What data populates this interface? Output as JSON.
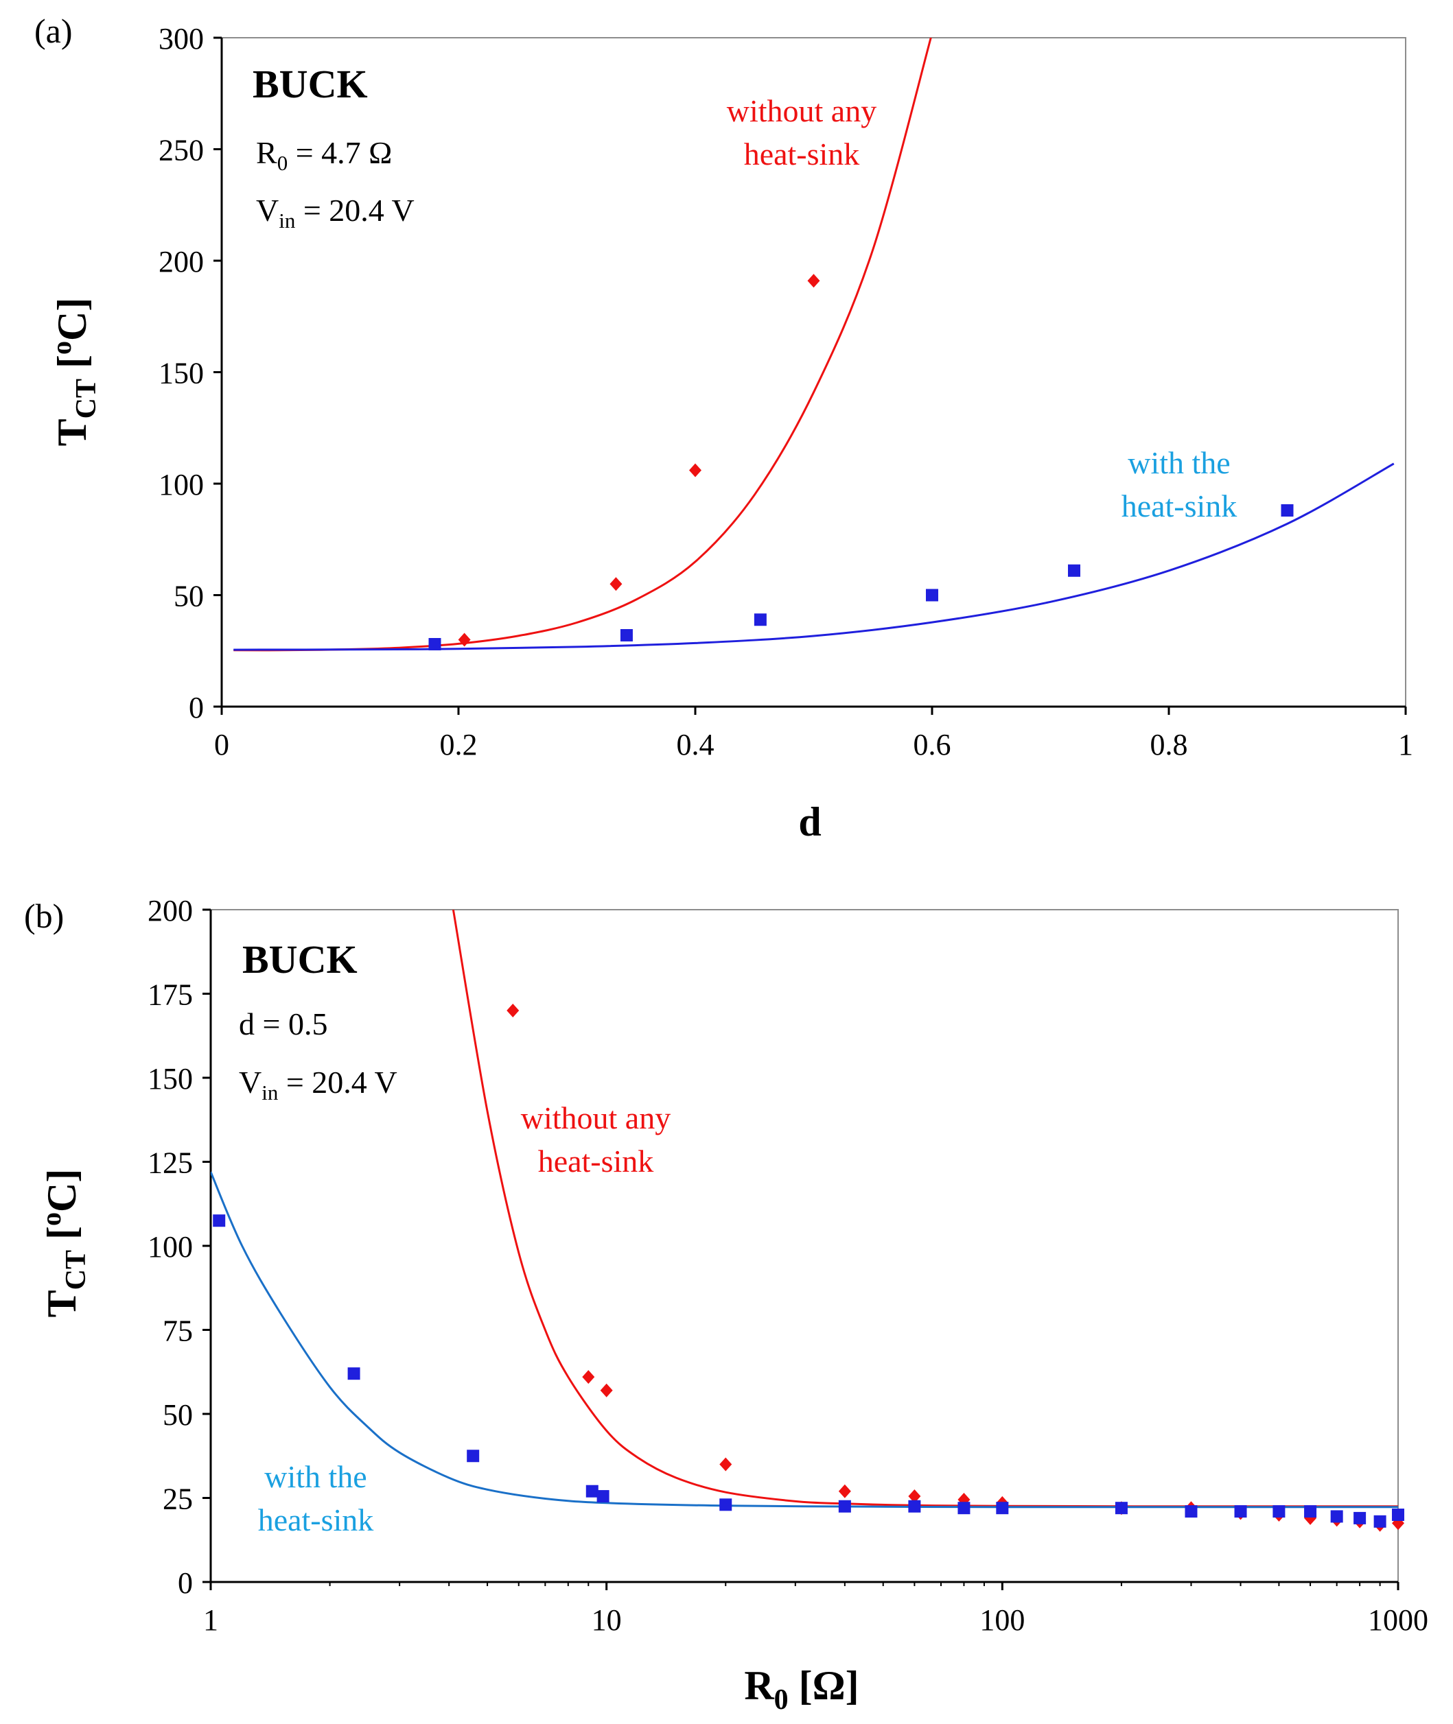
{
  "chart_data": [
    {
      "panel_label": "(a)",
      "type": "scatter",
      "xlabel": "d",
      "ylabel_main": "T",
      "ylabel_sub": "CT",
      "ylabel_unit_pre": " [",
      "ylabel_unit_sup": "o",
      "ylabel_unit_post": "C]",
      "xscale": "linear",
      "xlim": [
        0,
        1
      ],
      "ylim": [
        0,
        300
      ],
      "xticks": [
        0,
        0.2,
        0.4,
        0.6,
        0.8,
        1
      ],
      "xtick_labels": [
        "0",
        "0.2",
        "0.4",
        "0.6",
        "0.8",
        "1"
      ],
      "yticks": [
        0,
        50,
        100,
        150,
        200,
        250,
        300
      ],
      "ytick_labels": [
        "0",
        "50",
        "100",
        "150",
        "200",
        "250",
        "300"
      ],
      "grid": false,
      "annotations": {
        "title": "BUCK",
        "param1": {
          "main": "R",
          "sub": "0",
          "rest": " = 4.7 Ω"
        },
        "param2": {
          "main": "V",
          "sub": "in",
          "rest": " = 20.4 V"
        }
      },
      "series": [
        {
          "name": "without any heat-sink",
          "label_lines": [
            "without any",
            "heat-sink"
          ],
          "color": "#ee1111",
          "marker": "diamond",
          "points": [
            [
              0.205,
              30
            ],
            [
              0.333,
              55
            ],
            [
              0.4,
              106
            ],
            [
              0.5,
              191
            ]
          ],
          "curve": [
            [
              0.01,
              25.3
            ],
            [
              0.05,
              25.3
            ],
            [
              0.1,
              25.6
            ],
            [
              0.15,
              26.4
            ],
            [
              0.2,
              28.2
            ],
            [
              0.25,
              31.7
            ],
            [
              0.3,
              37.7
            ],
            [
              0.35,
              48
            ],
            [
              0.4,
              65
            ],
            [
              0.45,
              95
            ],
            [
              0.5,
              141
            ],
            [
              0.55,
              205
            ],
            [
              0.6,
              302
            ]
          ]
        },
        {
          "name": "with the heat-sink",
          "label_lines": [
            "with the",
            "heat-sink"
          ],
          "color": "#1f1fdd",
          "label_color": "#1aa0e0",
          "marker": "square",
          "points": [
            [
              0.18,
              28
            ],
            [
              0.342,
              32
            ],
            [
              0.455,
              39
            ],
            [
              0.6,
              50
            ],
            [
              0.72,
              61
            ],
            [
              0.9,
              88
            ]
          ],
          "curve": [
            [
              0.01,
              25.5
            ],
            [
              0.1,
              25.6
            ],
            [
              0.2,
              25.9
            ],
            [
              0.3,
              26.8
            ],
            [
              0.4,
              28.5
            ],
            [
              0.5,
              31.7
            ],
            [
              0.6,
              37.8
            ],
            [
              0.7,
              47
            ],
            [
              0.8,
              61
            ],
            [
              0.9,
              82
            ],
            [
              0.99,
              109
            ]
          ]
        }
      ]
    },
    {
      "panel_label": "(b)",
      "type": "scatter",
      "xlabel_main": "R",
      "xlabel_sub": "0",
      "xlabel_rest": " [Ω]",
      "ylabel_main": "T",
      "ylabel_sub": "CT",
      "ylabel_unit_pre": " [",
      "ylabel_unit_sup": "o",
      "ylabel_unit_post": "C]",
      "xscale": "log",
      "xlim": [
        1,
        1000
      ],
      "ylim": [
        0,
        200
      ],
      "xticks": [
        1,
        10,
        100,
        1000
      ],
      "xtick_labels": [
        "1",
        "10",
        "100",
        "1000"
      ],
      "yticks": [
        0,
        25,
        50,
        75,
        100,
        125,
        150,
        175,
        200
      ],
      "ytick_labels": [
        "0",
        "25",
        "50",
        "75",
        "100",
        "125",
        "150",
        "175",
        "200"
      ],
      "grid": false,
      "annotations": {
        "title": "BUCK",
        "param1": {
          "main": "d = 0.5",
          "sub": "",
          "rest": ""
        },
        "param2": {
          "main": "V",
          "sub": "in",
          "rest": " = 20.4 V"
        }
      },
      "series": [
        {
          "name": "without any heat-sink",
          "label_lines": [
            "without any",
            "heat-sink"
          ],
          "color": "#ee1111",
          "marker": "diamond",
          "points": [
            [
              5.8,
              170
            ],
            [
              9,
              61
            ],
            [
              10,
              57
            ],
            [
              20,
              35
            ],
            [
              40,
              27
            ],
            [
              60,
              25.5
            ],
            [
              80,
              24.5
            ],
            [
              100,
              23.5
            ],
            [
              200,
              22
            ],
            [
              300,
              22
            ],
            [
              400,
              20.5
            ],
            [
              500,
              20
            ],
            [
              600,
              19
            ],
            [
              700,
              18.5
            ],
            [
              800,
              18
            ],
            [
              900,
              17
            ],
            [
              1000,
              17.5
            ]
          ],
          "curve": [
            [
              4.1,
              200
            ],
            [
              5,
              140
            ],
            [
              6,
              98
            ],
            [
              7,
              75
            ],
            [
              8,
              61
            ],
            [
              10,
              45
            ],
            [
              12,
              37
            ],
            [
              15,
              31
            ],
            [
              20,
              26.7
            ],
            [
              30,
              24
            ],
            [
              40,
              23.3
            ],
            [
              60,
              22.8
            ],
            [
              100,
              22.6
            ],
            [
              300,
              22.5
            ],
            [
              1000,
              22.5
            ]
          ]
        },
        {
          "name": "with the heat-sink",
          "label_lines": [
            "with the",
            "heat-sink"
          ],
          "color": "#1f1fdd",
          "curve_color": "#1a70c8",
          "label_color": "#1aa0e0",
          "marker": "square",
          "points": [
            [
              1.05,
              107.5
            ],
            [
              2.3,
              62
            ],
            [
              4.6,
              37.5
            ],
            [
              9.2,
              27
            ],
            [
              9.8,
              25.5
            ],
            [
              20,
              23
            ],
            [
              40,
              22.5
            ],
            [
              60,
              22.5
            ],
            [
              80,
              22
            ],
            [
              100,
              22
            ],
            [
              200,
              22
            ],
            [
              300,
              21
            ],
            [
              400,
              21
            ],
            [
              500,
              21
            ],
            [
              600,
              21
            ],
            [
              700,
              19.5
            ],
            [
              800,
              19
            ],
            [
              900,
              18
            ],
            [
              1000,
              20
            ]
          ],
          "curve": [
            [
              1,
              122
            ],
            [
              1.2,
              100
            ],
            [
              1.5,
              80
            ],
            [
              2,
              58
            ],
            [
              2.5,
              46
            ],
            [
              3,
              38.5
            ],
            [
              4,
              31
            ],
            [
              5,
              27.5
            ],
            [
              7,
              24.8
            ],
            [
              10,
              23.5
            ],
            [
              20,
              22.7
            ],
            [
              50,
              22.4
            ],
            [
              100,
              22.3
            ],
            [
              1000,
              22.3
            ]
          ]
        }
      ]
    }
  ]
}
